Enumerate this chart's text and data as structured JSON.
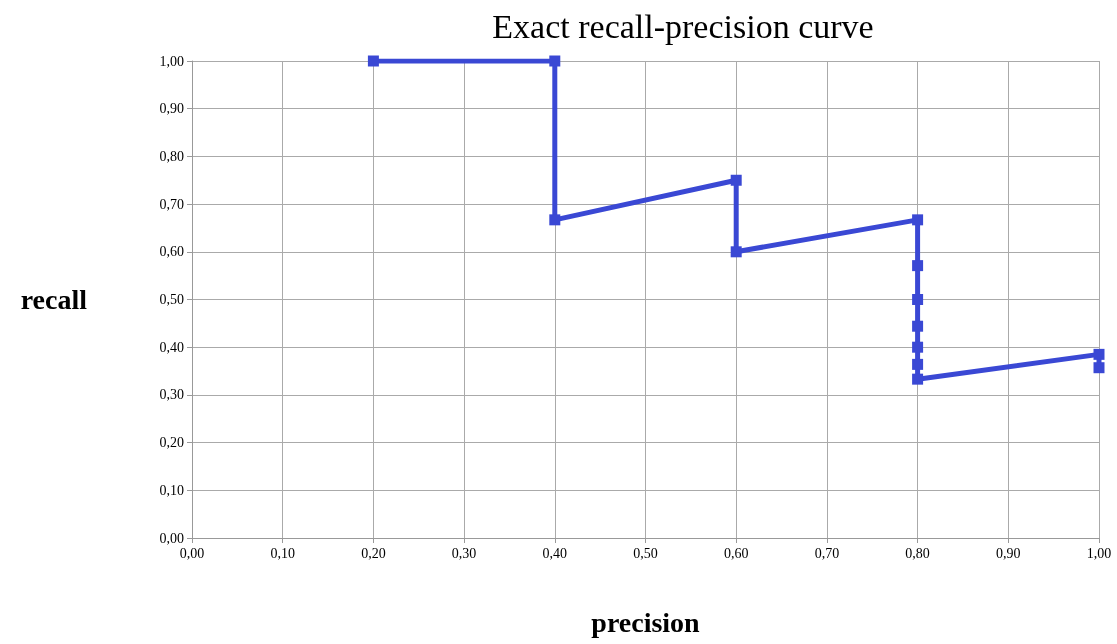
{
  "chart_data": {
    "type": "line",
    "title": "Exact recall-precision curve",
    "xlabel": "precision",
    "ylabel": "recall",
    "x": [
      0.2,
      0.4,
      0.4,
      0.6,
      0.6,
      0.8,
      0.8,
      0.8,
      0.8,
      0.8,
      0.8,
      0.8,
      1.0,
      1.0
    ],
    "series": [
      {
        "color": "#3a48d4",
        "values": [
          1.0,
          1.0,
          0.667,
          0.75,
          0.6,
          0.667,
          0.571,
          0.5,
          0.444,
          0.4,
          0.364,
          0.333,
          0.385,
          0.357
        ]
      }
    ],
    "xlim": [
      0,
      1
    ],
    "ylim": [
      0,
      1
    ],
    "xticks": [
      {
        "value": 0,
        "label": "0,00"
      },
      {
        "value": 0.1,
        "label": "0,10"
      },
      {
        "value": 0.2,
        "label": "0,20"
      },
      {
        "value": 0.3,
        "label": "0,30"
      },
      {
        "value": 0.4,
        "label": "0,40"
      },
      {
        "value": 0.5,
        "label": "0,50"
      },
      {
        "value": 0.6,
        "label": "0,60"
      },
      {
        "value": 0.7,
        "label": "0,70"
      },
      {
        "value": 0.8,
        "label": "0,80"
      },
      {
        "value": 0.9,
        "label": "0,90"
      },
      {
        "value": 1,
        "label": "1,00"
      }
    ],
    "yticks": [
      {
        "value": 0,
        "label": "0,00"
      },
      {
        "value": 0.1,
        "label": "0,10"
      },
      {
        "value": 0.2,
        "label": "0,20"
      },
      {
        "value": 0.3,
        "label": "0,30"
      },
      {
        "value": 0.4,
        "label": "0,40"
      },
      {
        "value": 0.5,
        "label": "0,50"
      },
      {
        "value": 0.6,
        "label": "0,60"
      },
      {
        "value": 0.7,
        "label": "0,70"
      },
      {
        "value": 0.8,
        "label": "0,80"
      },
      {
        "value": 0.9,
        "label": "0,90"
      },
      {
        "value": 1,
        "label": "1,00"
      }
    ],
    "grid": true,
    "marker": "square",
    "line_style": "solid"
  }
}
